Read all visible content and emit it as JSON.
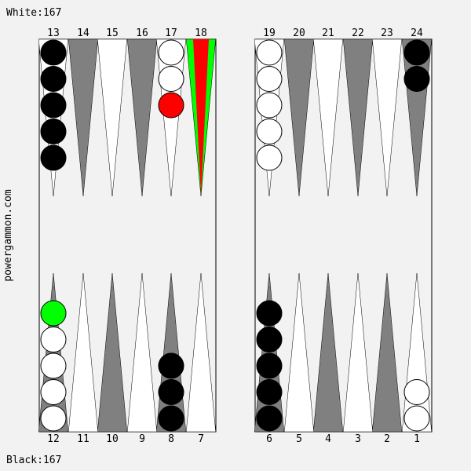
{
  "header": {
    "score_text": "White:167"
  },
  "footer": {
    "score_text": "Black:167"
  },
  "side_label": "powergammon.com",
  "colors": {
    "background": "#f2f2f2",
    "dark_point": "#808080",
    "light_point": "#ffffff",
    "white_checker": "#ffffff",
    "black_checker": "#000000",
    "highlight_from": "#ff0000",
    "highlight_to": "#00ff00"
  },
  "board": {
    "top_numbers": [
      "13",
      "14",
      "15",
      "16",
      "17",
      "18",
      "19",
      "20",
      "21",
      "22",
      "23",
      "24"
    ],
    "bottom_numbers": [
      "12",
      "11",
      "10",
      "9",
      "8",
      "7",
      "6",
      "5",
      "4",
      "3",
      "2",
      "1"
    ],
    "highlighted_point": "18",
    "points": [
      {
        "point": 13,
        "color": "black",
        "count": 5
      },
      {
        "point": 17,
        "color": "white",
        "count": 2,
        "extra": "red"
      },
      {
        "point": 19,
        "color": "white",
        "count": 5
      },
      {
        "point": 24,
        "color": "black",
        "count": 2
      },
      {
        "point": 12,
        "color": "white",
        "count": 4,
        "extra": "green"
      },
      {
        "point": 8,
        "color": "black",
        "count": 3
      },
      {
        "point": 6,
        "color": "black",
        "count": 5
      },
      {
        "point": 1,
        "color": "white",
        "count": 2
      }
    ]
  }
}
